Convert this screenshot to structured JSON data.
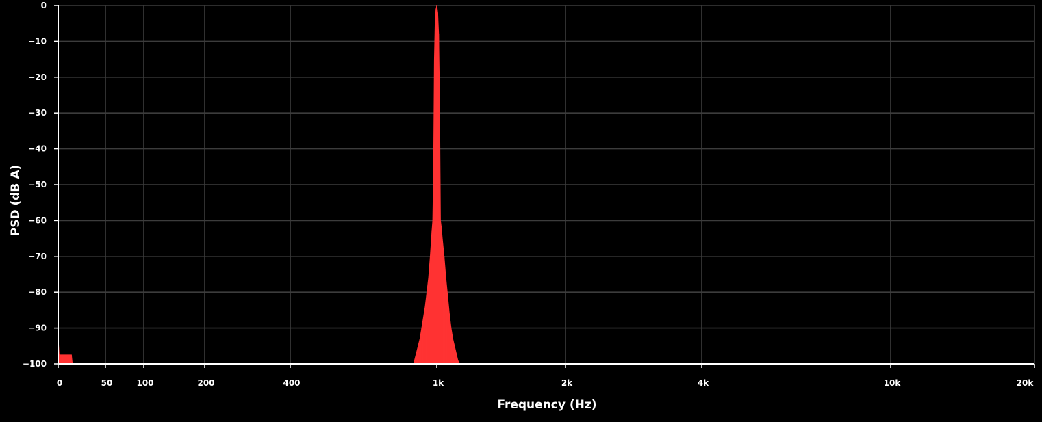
{
  "chart_data": {
    "type": "area",
    "xlabel": "Frequency (Hz)",
    "ylabel": "PSD (dB A)",
    "x_scale": "mixed (compressed below 100 Hz, log above)",
    "x_ticks": [
      {
        "value": 0,
        "label": "0"
      },
      {
        "value": 50,
        "label": "50"
      },
      {
        "value": 100,
        "label": "100"
      },
      {
        "value": 200,
        "label": "200"
      },
      {
        "value": 400,
        "label": "400"
      },
      {
        "value": 1000,
        "label": "1k"
      },
      {
        "value": 2000,
        "label": "2k"
      },
      {
        "value": 4000,
        "label": "4k"
      },
      {
        "value": 10000,
        "label": "10k"
      },
      {
        "value": 20000,
        "label": "20k"
      }
    ],
    "y_ticks": [
      0,
      -10,
      -20,
      -30,
      -40,
      -50,
      -60,
      -70,
      -80,
      -90,
      -100
    ],
    "ylim": [
      -100,
      0
    ],
    "xlim": [
      0,
      20000
    ],
    "grid": true,
    "colors": {
      "series": "#ff3333",
      "grid": "#3c3c3c",
      "axis": "#ffffff",
      "background": "#000000"
    },
    "series": [
      {
        "x": [
          0,
          1,
          2,
          3,
          4,
          5,
          6,
          7,
          8,
          9,
          10,
          11,
          12,
          13,
          14,
          15,
          16
        ],
        "y": [
          -93,
          -97.5,
          -97.5,
          -97.5,
          -97.5,
          -97.5,
          -97.5,
          -97.5,
          -97.5,
          -97.5,
          -97.5,
          -97.5,
          -97.5,
          -97.5,
          -97.5,
          -100,
          -100
        ]
      },
      {
        "x": [
          870,
          880,
          890,
          900,
          910,
          920,
          930,
          940,
          950,
          960,
          970,
          975,
          980,
          985,
          990,
          995,
          1000,
          1005,
          1010,
          1015,
          1020,
          1025,
          1030,
          1040,
          1050,
          1060,
          1070,
          1080,
          1090,
          1100,
          1110,
          1120,
          1130
        ],
        "y": [
          -99,
          -97,
          -95,
          -93,
          -90,
          -87,
          -84,
          -80,
          -76,
          -70,
          -63,
          -60,
          -45,
          -15,
          -4,
          -1,
          0,
          -2,
          -8,
          -26,
          -60,
          -62,
          -65,
          -70,
          -76,
          -81,
          -86,
          -90,
          -93,
          -95,
          -97,
          -99,
          -100
        ]
      }
    ]
  }
}
